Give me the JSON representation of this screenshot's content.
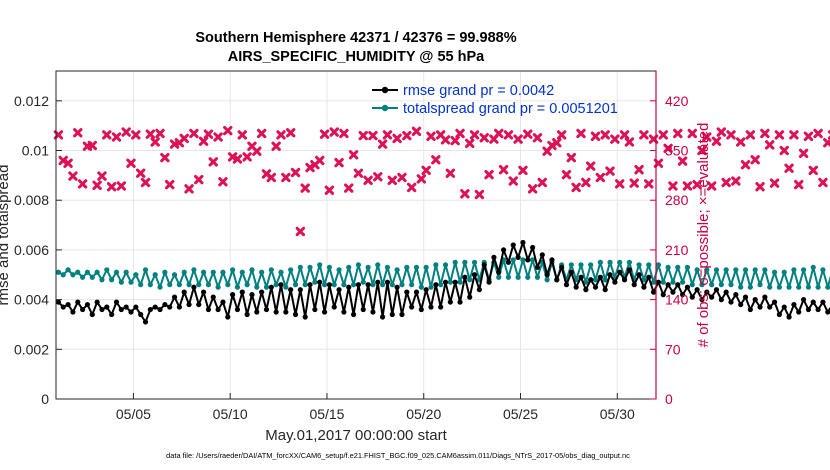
{
  "chart_data": {
    "type": "line",
    "title_line1": "Southern Hemisphere 42371 / 42376 = 99.988%",
    "title_line2": "AIRS_SPECIFIC_HUMIDITY @ 55 hPa",
    "xlabel": "May.01,2017 00:00:00 start",
    "ylabel_left": "rmse and totalspread",
    "ylabel_right": "# of obs: o=possible; ×=evaluated",
    "footer": "data file: /Users/raeder/DAI/ATM_forcXX/CAM6_setup/f.e21.FHIST_BGC.f09_025.CAM6assim.011/Diags_NTrS_2017-05/obs_diag_output.nc",
    "xlim": [
      1.0,
      32.0
    ],
    "ylim_left": [
      0,
      0.0132
    ],
    "ylim_right": [
      0,
      462
    ],
    "xticks": [
      5,
      10,
      15,
      20,
      25,
      30
    ],
    "xtick_labels": [
      "05/05",
      "05/10",
      "05/15",
      "05/20",
      "05/25",
      "05/30"
    ],
    "yticks_left": [
      0,
      0.002,
      0.004,
      0.006,
      0.008,
      0.01,
      0.012
    ],
    "ytick_labels_left": [
      "0",
      "0.002",
      "0.004",
      "0.006",
      "0.008",
      "0.01",
      "0.012"
    ],
    "yticks_right": [
      0,
      70,
      140,
      210,
      280,
      350,
      420
    ],
    "ytick_labels_right": [
      "0",
      "70",
      "140",
      "210",
      "280",
      "350",
      "420"
    ],
    "legend": [
      {
        "name": "rmse grand pr = 0.0042",
        "color": "#000000"
      },
      {
        "name": "totalspread grand pr = 0.0051201",
        "color": "#008080"
      }
    ],
    "legend_text_color": "#0033cc",
    "obs_color": "#dd1155",
    "axis_right_color": "#cc0044",
    "series": [
      {
        "name": "rmse",
        "color": "#000000",
        "x0": 1.125,
        "dx": 0.25,
        "values": [
          0.0039,
          0.0037,
          0.0038,
          0.0035,
          0.0039,
          0.0036,
          0.0038,
          0.0034,
          0.0039,
          0.0036,
          0.0037,
          0.0034,
          0.0039,
          0.0036,
          0.0037,
          0.0035,
          0.0037,
          0.0034,
          0.0031,
          0.0036,
          0.0037,
          0.0036,
          0.0038,
          0.0037,
          0.0041,
          0.0037,
          0.0043,
          0.0038,
          0.0045,
          0.0038,
          0.0043,
          0.0036,
          0.0041,
          0.0036,
          0.0039,
          0.0033,
          0.0042,
          0.0036,
          0.0043,
          0.0034,
          0.0042,
          0.0035,
          0.0043,
          0.0036,
          0.0045,
          0.0035,
          0.0046,
          0.0035,
          0.0044,
          0.0034,
          0.0044,
          0.0033,
          0.0046,
          0.0036,
          0.0047,
          0.0035,
          0.0046,
          0.0037,
          0.0044,
          0.0035,
          0.0045,
          0.0034,
          0.0046,
          0.0036,
          0.0046,
          0.0035,
          0.0047,
          0.0033,
          0.0047,
          0.0034,
          0.0045,
          0.0034,
          0.0043,
          0.0037,
          0.0043,
          0.0036,
          0.0044,
          0.0037,
          0.0046,
          0.0037,
          0.0047,
          0.0039,
          0.0047,
          0.0039,
          0.0049,
          0.0041,
          0.005,
          0.0044,
          0.0054,
          0.0047,
          0.0057,
          0.0051,
          0.006,
          0.0055,
          0.0062,
          0.0057,
          0.0063,
          0.0056,
          0.0061,
          0.0053,
          0.0058,
          0.005,
          0.0056,
          0.0048,
          0.0053,
          0.0046,
          0.0051,
          0.0045,
          0.0049,
          0.0044,
          0.0048,
          0.0045,
          0.0049,
          0.0044,
          0.005,
          0.0047,
          0.0051,
          0.0048,
          0.0052,
          0.0046,
          0.005,
          0.0045,
          0.0049,
          0.0043,
          0.0047,
          0.0042,
          0.0046,
          0.0043,
          0.0046,
          0.0042,
          0.0045,
          0.0041,
          0.0044,
          0.004,
          0.0043,
          0.0041,
          0.0044,
          0.004,
          0.0043,
          0.0039,
          0.0042,
          0.0038,
          0.0041,
          0.0036,
          0.004,
          0.0037,
          0.0041,
          0.0037,
          0.0039,
          0.0034,
          0.0037,
          0.0033,
          0.0038,
          0.0035,
          0.004,
          0.0036,
          0.0039,
          0.0036,
          0.0039,
          0.0035,
          0.0038,
          0.0036,
          0.0041,
          0.0036,
          0.004,
          0.0035,
          0.0046,
          0.0039,
          0.0043,
          0.0036,
          0.0041,
          0.0035,
          0.0044,
          0.0039,
          0.004,
          0.0038
        ]
      },
      {
        "name": "totalspread",
        "color": "#008080",
        "x0": 1.125,
        "dx": 0.25,
        "values": [
          0.0051,
          0.005,
          0.0052,
          0.005,
          0.0051,
          0.0049,
          0.0051,
          0.0049,
          0.0051,
          0.0048,
          0.0052,
          0.0048,
          0.0051,
          0.0047,
          0.0051,
          0.0047,
          0.005,
          0.0046,
          0.0052,
          0.0046,
          0.005,
          0.0045,
          0.0051,
          0.0046,
          0.005,
          0.0046,
          0.0051,
          0.0046,
          0.0052,
          0.0046,
          0.0051,
          0.0046,
          0.0051,
          0.0045,
          0.0051,
          0.0046,
          0.0052,
          0.0045,
          0.0051,
          0.0046,
          0.0052,
          0.0045,
          0.0051,
          0.0045,
          0.0052,
          0.0046,
          0.0051,
          0.0045,
          0.0052,
          0.0046,
          0.0053,
          0.0046,
          0.0053,
          0.0047,
          0.0054,
          0.0046,
          0.0053,
          0.0046,
          0.0052,
          0.0046,
          0.0053,
          0.0046,
          0.0054,
          0.0047,
          0.0053,
          0.0046,
          0.0054,
          0.0046,
          0.0053,
          0.0046,
          0.0052,
          0.0046,
          0.0053,
          0.0046,
          0.0053,
          0.0045,
          0.0053,
          0.0045,
          0.0054,
          0.0046,
          0.0054,
          0.0047,
          0.0055,
          0.0047,
          0.0055,
          0.0048,
          0.0055,
          0.0048,
          0.0055,
          0.0048,
          0.0055,
          0.0049,
          0.0056,
          0.0049,
          0.0056,
          0.0049,
          0.0056,
          0.0049,
          0.0056,
          0.0049,
          0.0055,
          0.0048,
          0.0055,
          0.0048,
          0.0054,
          0.0048,
          0.0054,
          0.0048,
          0.0054,
          0.0047,
          0.0054,
          0.0048,
          0.0055,
          0.0048,
          0.0055,
          0.0049,
          0.0055,
          0.0049,
          0.0055,
          0.0048,
          0.0054,
          0.0048,
          0.0054,
          0.0047,
          0.0054,
          0.0047,
          0.0053,
          0.0047,
          0.0053,
          0.0047,
          0.0053,
          0.0046,
          0.0052,
          0.0046,
          0.0052,
          0.0046,
          0.0052,
          0.0046,
          0.0052,
          0.0046,
          0.0052,
          0.0045,
          0.0052,
          0.0045,
          0.0052,
          0.0046,
          0.0052,
          0.0045,
          0.0051,
          0.0045,
          0.0051,
          0.0045,
          0.0052,
          0.0045,
          0.0052,
          0.0045,
          0.0053,
          0.0045,
          0.0052,
          0.0045,
          0.0052,
          0.0045,
          0.0053,
          0.0045,
          0.0053,
          0.0045,
          0.0055,
          0.0045,
          0.0054,
          0.0045,
          0.0053,
          0.0044,
          0.0051,
          0.0044,
          0.0052,
          0.0045
        ]
      },
      {
        "name": "obs_evaluated",
        "color": "#dd1155",
        "marker": "x",
        "axis": "right",
        "x0": 1.125,
        "dx": 0.25,
        "values": [
          372,
          336,
          332,
          314,
          375,
          303,
          356,
          357,
          301,
          314,
          372,
          299,
          369,
          300,
          376,
          332,
          372,
          318,
          305,
          373,
          362,
          374,
          340,
          302,
          359,
          361,
          367,
          296,
          374,
          309,
          363,
          373,
          334,
          369,
          306,
          378,
          341,
          338,
          372,
          341,
          356,
          349,
          374,
          317,
          312,
          356,
          372,
          312,
          375,
          319,
          236,
          297,
          326,
          330,
          336,
          373,
          294,
          376,
          333,
          374,
          297,
          344,
          318,
          371,
          308,
          371,
          313,
          359,
          372,
          308,
          367,
          312,
          371,
          298,
          377,
          310,
          322,
          370,
          337,
          372,
          365,
          318,
          364,
          374,
          289,
          360,
          372,
          288,
          368,
          316,
          366,
          374,
          323,
          372,
          307,
          366,
          322,
          373,
          296,
          368,
          305,
          349,
          357,
          361,
          372,
          316,
          340,
          298,
          374,
          305,
          328,
          370,
          312,
          372,
          321,
          366,
          303,
          372,
          362,
          304,
          323,
          372,
          303,
          366,
          332,
          372,
          353,
          300,
          374,
          335,
          300,
          374,
          302,
          350,
          369,
          300,
          363,
          376,
          305,
          372,
          307,
          362,
          330,
          372,
          337,
          299,
          374,
          358,
          304,
          372,
          350,
          325,
          372,
          302,
          346,
          370,
          322,
          374,
          305,
          361,
          372,
          322,
          370,
          330,
          366,
          372,
          306,
          336,
          374,
          336,
          356,
          303,
          372,
          368,
          347,
          372,
          367,
          373
        ]
      }
    ]
  }
}
